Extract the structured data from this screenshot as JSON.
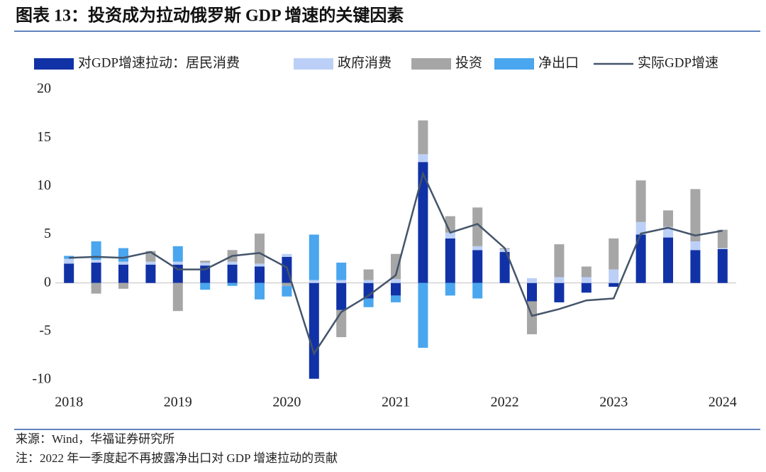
{
  "chart_data": {
    "type": "bar",
    "title": "图表 13：投资成为拉动俄罗斯 GDP 增速的关键因素",
    "source": "来源：Wind，华福证券研究所",
    "note": "注：2022 年一季度起不再披露净出口对 GDP 增速拉动的贡献",
    "categories": [
      "2018",
      null,
      null,
      null,
      "2019",
      null,
      null,
      null,
      "2020",
      null,
      null,
      null,
      "2021",
      null,
      null,
      null,
      "2022",
      null,
      null,
      null,
      "2023",
      null,
      null,
      null,
      "2024"
    ],
    "series": [
      {
        "name": "对GDP增速拉动：居民消费",
        "color": "#1132a6",
        "values": [
          2.0,
          2.1,
          1.9,
          1.9,
          1.9,
          1.8,
          1.9,
          1.7,
          2.7,
          -9.9,
          -2.8,
          -1.6,
          -1.3,
          12.5,
          4.6,
          3.4,
          3.2,
          -1.9,
          -2.0,
          -1.0,
          -0.4,
          5.0,
          4.7,
          3.4,
          3.5
        ]
      },
      {
        "name": "政府消费",
        "color": "#bcd0f7",
        "values": [
          0.5,
          0.3,
          0.3,
          0.3,
          0.3,
          0.3,
          0.3,
          0.3,
          0.3,
          0.3,
          0.3,
          0.3,
          0.4,
          0.8,
          0.6,
          0.4,
          0.3,
          0.5,
          0.6,
          0.6,
          1.4,
          1.3,
          1.1,
          0.9,
          0.1
        ]
      },
      {
        "name": "投资",
        "color": "#a6a6a6",
        "values": [
          0,
          -1.1,
          -0.6,
          1.1,
          -2.9,
          0.2,
          1.2,
          3.1,
          -0.3,
          0,
          -2.8,
          1.1,
          2.6,
          3.5,
          1.7,
          4.0,
          0.1,
          -3.4,
          3.4,
          1.1,
          3.2,
          4.3,
          1.7,
          5.4,
          1.9
        ]
      },
      {
        "name": "净出口",
        "color": "#4aa6ee",
        "values": [
          0.3,
          1.9,
          1.4,
          0,
          1.6,
          -0.7,
          -0.3,
          -1.7,
          -1.1,
          4.7,
          1.8,
          -0.9,
          -0.7,
          -6.7,
          -1.3,
          -1.6,
          null,
          null,
          null,
          null,
          null,
          null,
          null,
          null,
          null
        ]
      },
      {
        "name": "实际GDP增速",
        "color": "#44546a",
        "type": "line",
        "values": [
          2.6,
          2.7,
          2.6,
          3.2,
          1.4,
          1.4,
          2.8,
          3.1,
          1.6,
          -7.3,
          -3.0,
          -1.3,
          0.8,
          11.3,
          5.2,
          6.1,
          3.6,
          -3.4,
          -2.7,
          -1.8,
          -1.6,
          5.1,
          5.7,
          4.9,
          5.4
        ]
      }
    ],
    "ylim": [
      -10,
      20
    ],
    "yticks": [
      -10,
      -5,
      0,
      5,
      10,
      15,
      20
    ],
    "grid": false
  }
}
